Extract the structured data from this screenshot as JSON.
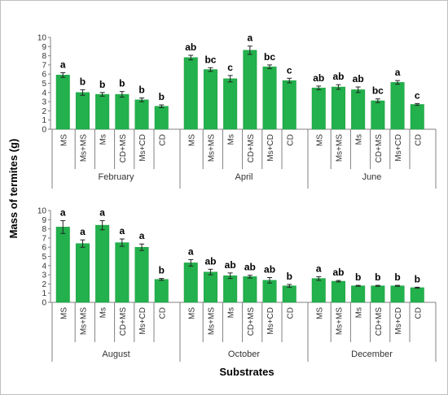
{
  "chart_data": [
    {
      "type": "bar",
      "ylim": [
        0,
        10
      ],
      "yticks": [
        0,
        1,
        2,
        3,
        4,
        5,
        6,
        7,
        8,
        9,
        10
      ],
      "color": "#22b14c",
      "groups": [
        {
          "name": "February",
          "categories": [
            "MS",
            "Ms+MS",
            "Ms",
            "CD+MS",
            "Ms+CD",
            "CD"
          ],
          "values": [
            5.9,
            4.0,
            3.8,
            3.8,
            3.2,
            2.5
          ],
          "errors": [
            0.25,
            0.3,
            0.2,
            0.3,
            0.2,
            0.15
          ],
          "letters": [
            "a",
            "b",
            "b",
            "b",
            "b",
            "b"
          ]
        },
        {
          "name": "April",
          "categories": [
            "MS",
            "Ms+MS",
            "Ms",
            "CD+MS",
            "Ms+CD",
            "CD"
          ],
          "values": [
            7.8,
            6.5,
            5.5,
            8.6,
            6.8,
            5.3
          ],
          "errors": [
            0.25,
            0.2,
            0.35,
            0.45,
            0.2,
            0.25
          ],
          "letters": [
            "ab",
            "bc",
            "c",
            "a",
            "bc",
            "c"
          ]
        },
        {
          "name": "June",
          "categories": [
            "MS",
            "Ms+MS",
            "Ms",
            "CD+MS",
            "Ms+CD",
            "CD"
          ],
          "values": [
            4.5,
            4.6,
            4.3,
            3.1,
            5.1,
            2.7
          ],
          "errors": [
            0.2,
            0.25,
            0.3,
            0.2,
            0.2,
            0.1
          ],
          "letters": [
            "ab",
            "ab",
            "ab",
            "bc",
            "a",
            "c"
          ]
        }
      ]
    },
    {
      "type": "bar",
      "ylim": [
        0,
        10
      ],
      "yticks": [
        0,
        1,
        2,
        3,
        4,
        5,
        6,
        7,
        8,
        9,
        10
      ],
      "color": "#22b14c",
      "groups": [
        {
          "name": "August",
          "categories": [
            "MS",
            "Ms+MS",
            "Ms",
            "CD+MS",
            "Ms+CD",
            "CD"
          ],
          "values": [
            8.2,
            6.4,
            8.4,
            6.5,
            6.0,
            2.5
          ],
          "errors": [
            0.7,
            0.4,
            0.5,
            0.4,
            0.35,
            0.1
          ],
          "letters": [
            "a",
            "a",
            "a",
            "a",
            "a",
            "b"
          ]
        },
        {
          "name": "October",
          "categories": [
            "MS",
            "Ms+MS",
            "Ms",
            "CD+MS",
            "Ms+CD",
            "CD"
          ],
          "values": [
            4.3,
            3.3,
            2.9,
            2.8,
            2.4,
            1.8
          ],
          "errors": [
            0.35,
            0.3,
            0.3,
            0.15,
            0.3,
            0.15
          ],
          "letters": [
            "a",
            "ab",
            "ab",
            "ab",
            "ab",
            "b"
          ]
        },
        {
          "name": "December",
          "categories": [
            "MS",
            "Ms+MS",
            "Ms",
            "CD+MS",
            "Ms+CD",
            "CD"
          ],
          "values": [
            2.6,
            2.3,
            1.8,
            1.8,
            1.8,
            1.6
          ],
          "errors": [
            0.2,
            0.08,
            0.05,
            0.05,
            0.05,
            0.05
          ],
          "letters": [
            "a",
            "ab",
            "b",
            "b",
            "b",
            "b"
          ]
        }
      ]
    }
  ],
  "ylabel": "Mass of termites (g)",
  "xlabel": "Substrates"
}
